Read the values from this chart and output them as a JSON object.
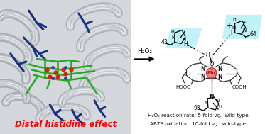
{
  "bg_color": "#ffffff",
  "red_text": "Distal histidine effect",
  "red_text_color": "#ff0000",
  "arrow_text": "H₂O₂",
  "hist43_label": "43",
  "hist64_label": "64",
  "hist93_label": "93",
  "mn_label": "Mn",
  "hooc_label": "HOOC",
  "cooh_label": "COOH",
  "bottom_text_line1": "H₂O₂ reaction rate: 5-fold νς.  wild-type",
  "bottom_text_line2": "ABTS oxidation: 10-fold νς.  wild-type",
  "cyan_color": "#aaeef8",
  "mn_fill": "#f08080",
  "mn_edge": "#cc3333",
  "porp_color": "#333333"
}
